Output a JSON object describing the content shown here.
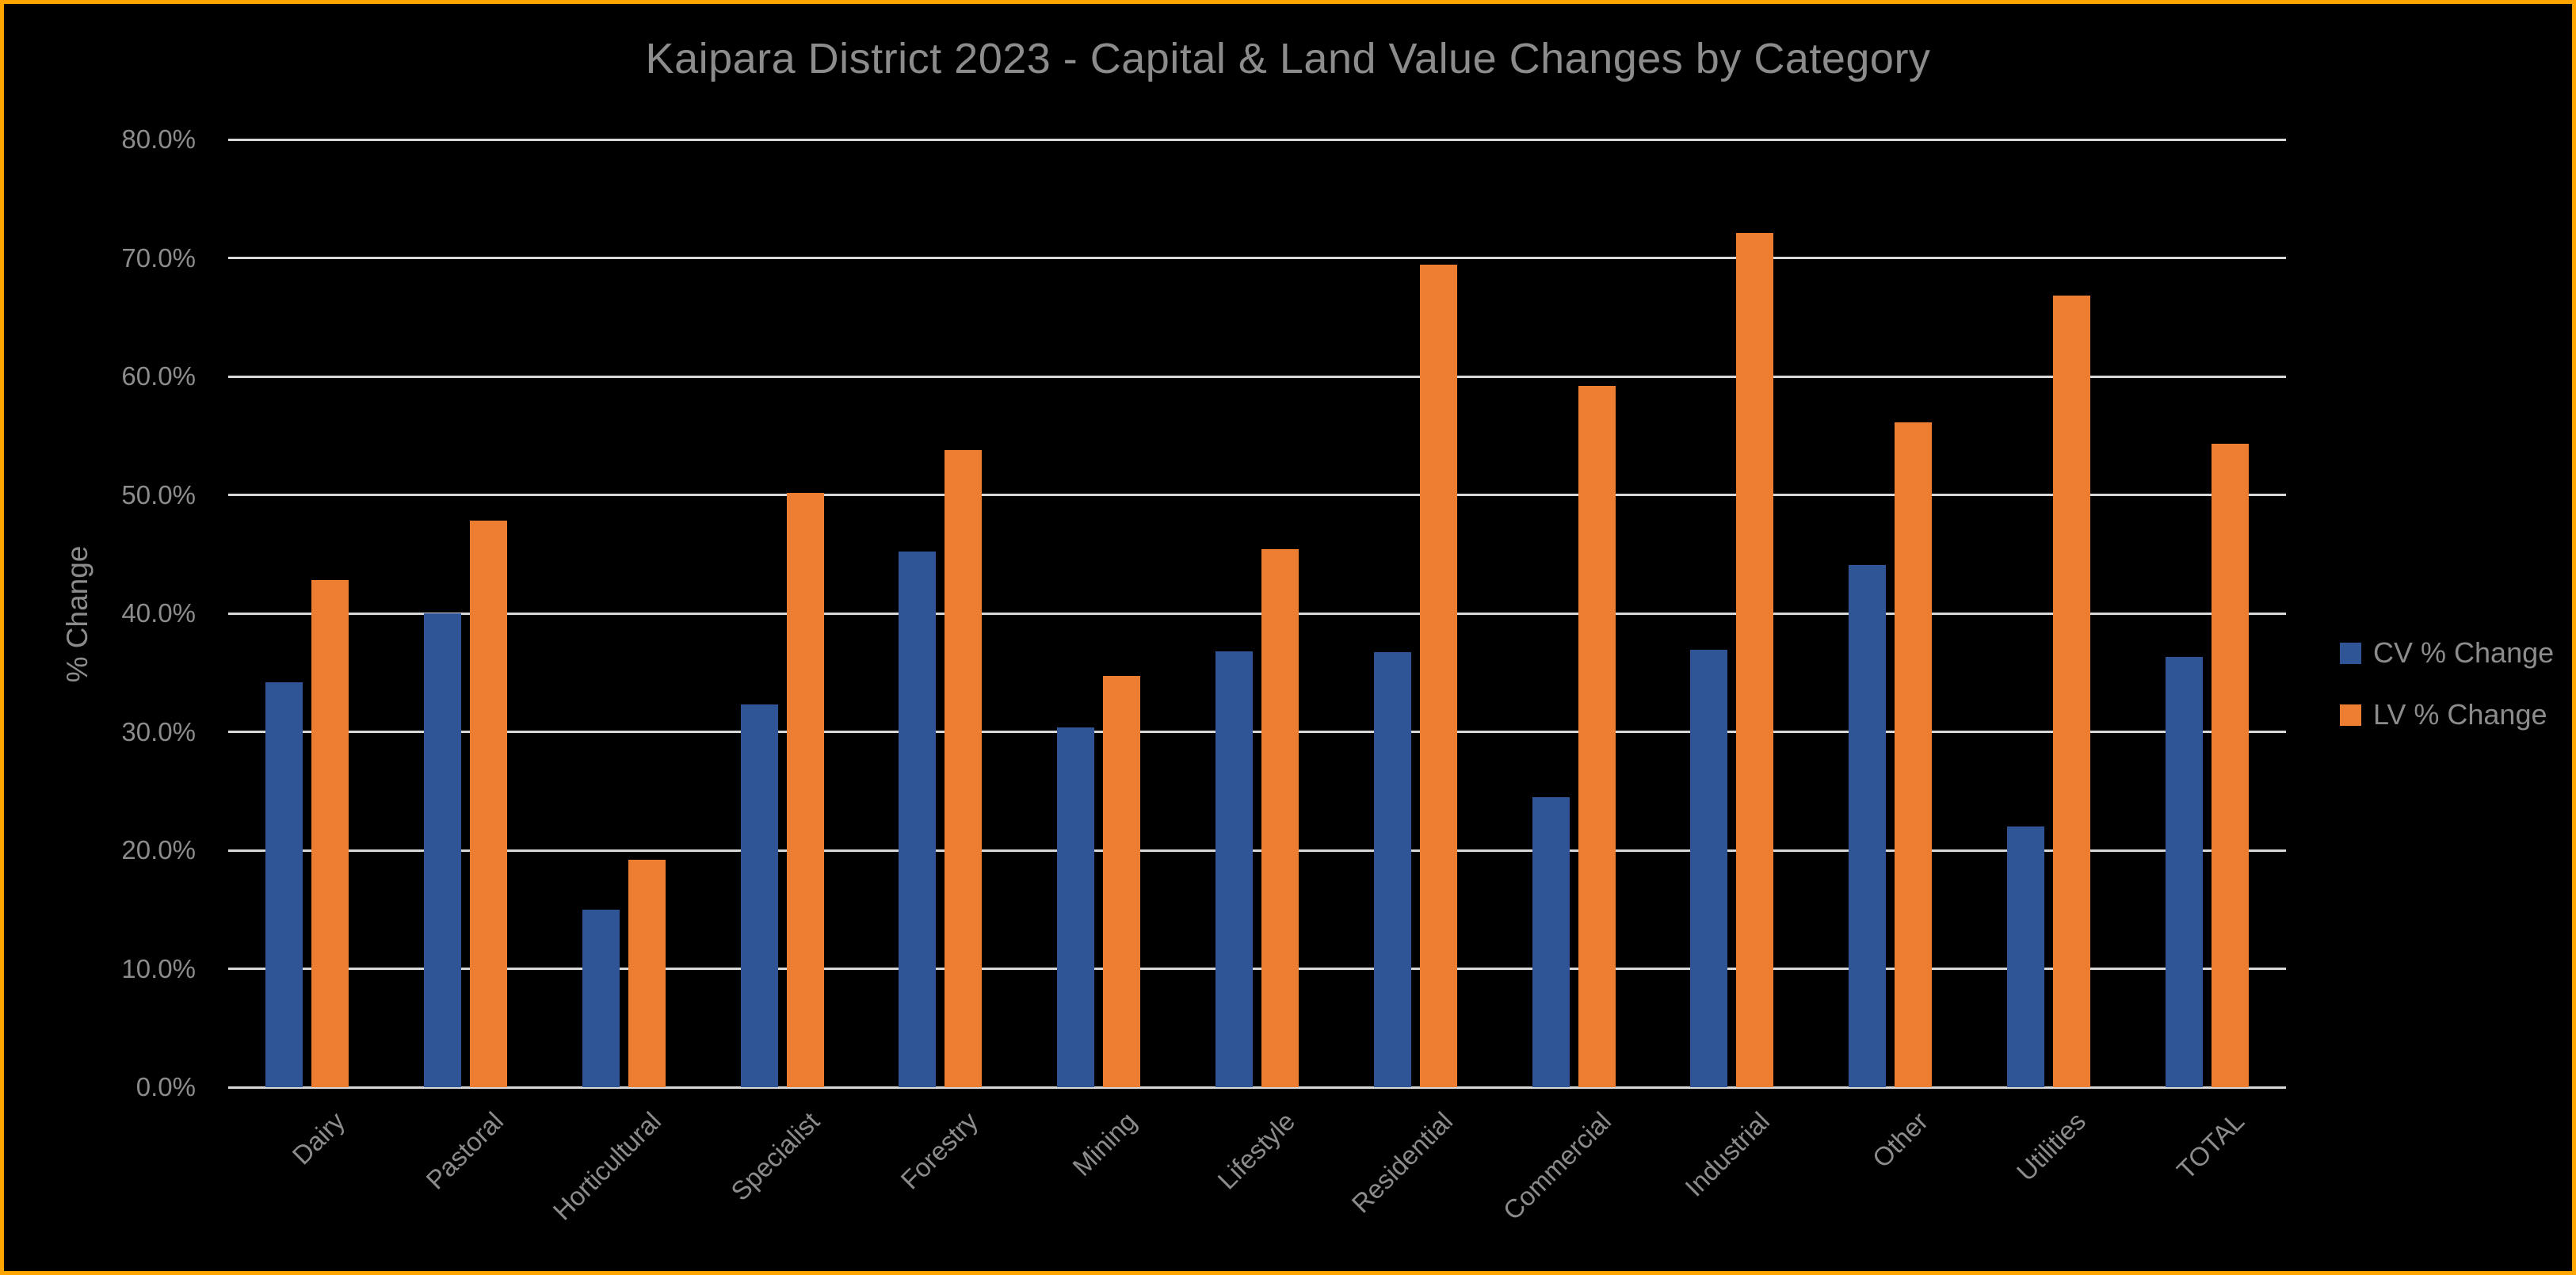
{
  "chart_data": {
    "type": "bar",
    "title": "Kaipara District 2023 - Capital & Land Value Changes by Category",
    "ylabel": "% Change",
    "categories": [
      "Dairy",
      "Pastoral",
      "Horticultural",
      "Specialist",
      "Forestry",
      "Mining",
      "Lifestyle",
      "Residential",
      "Commercial",
      "Industrial",
      "Other",
      "Utilities",
      "TOTAL"
    ],
    "series": [
      {
        "name": "CV % Change",
        "color": "#2F5597",
        "values": [
          34.2,
          40.0,
          15.0,
          32.3,
          45.2,
          30.4,
          36.8,
          36.7,
          24.5,
          36.9,
          44.1,
          22.0,
          36.3
        ]
      },
      {
        "name": "LV % Change",
        "color": "#ED7D31",
        "values": [
          42.8,
          47.8,
          19.2,
          50.2,
          53.8,
          34.7,
          45.4,
          69.4,
          59.2,
          72.1,
          56.1,
          66.8,
          54.3
        ]
      }
    ],
    "ylim": [
      0,
      80
    ],
    "ytick_labels": [
      "0.0%",
      "10.0%",
      "20.0%",
      "30.0%",
      "40.0%",
      "50.0%",
      "60.0%",
      "70.0%",
      "80.0%"
    ],
    "grid": true,
    "legend_position": "right"
  },
  "colors": {
    "background": "#000000",
    "frame_border": "#FFA500",
    "gridline": "#D8D8D8",
    "text": "#8C8C8C"
  }
}
